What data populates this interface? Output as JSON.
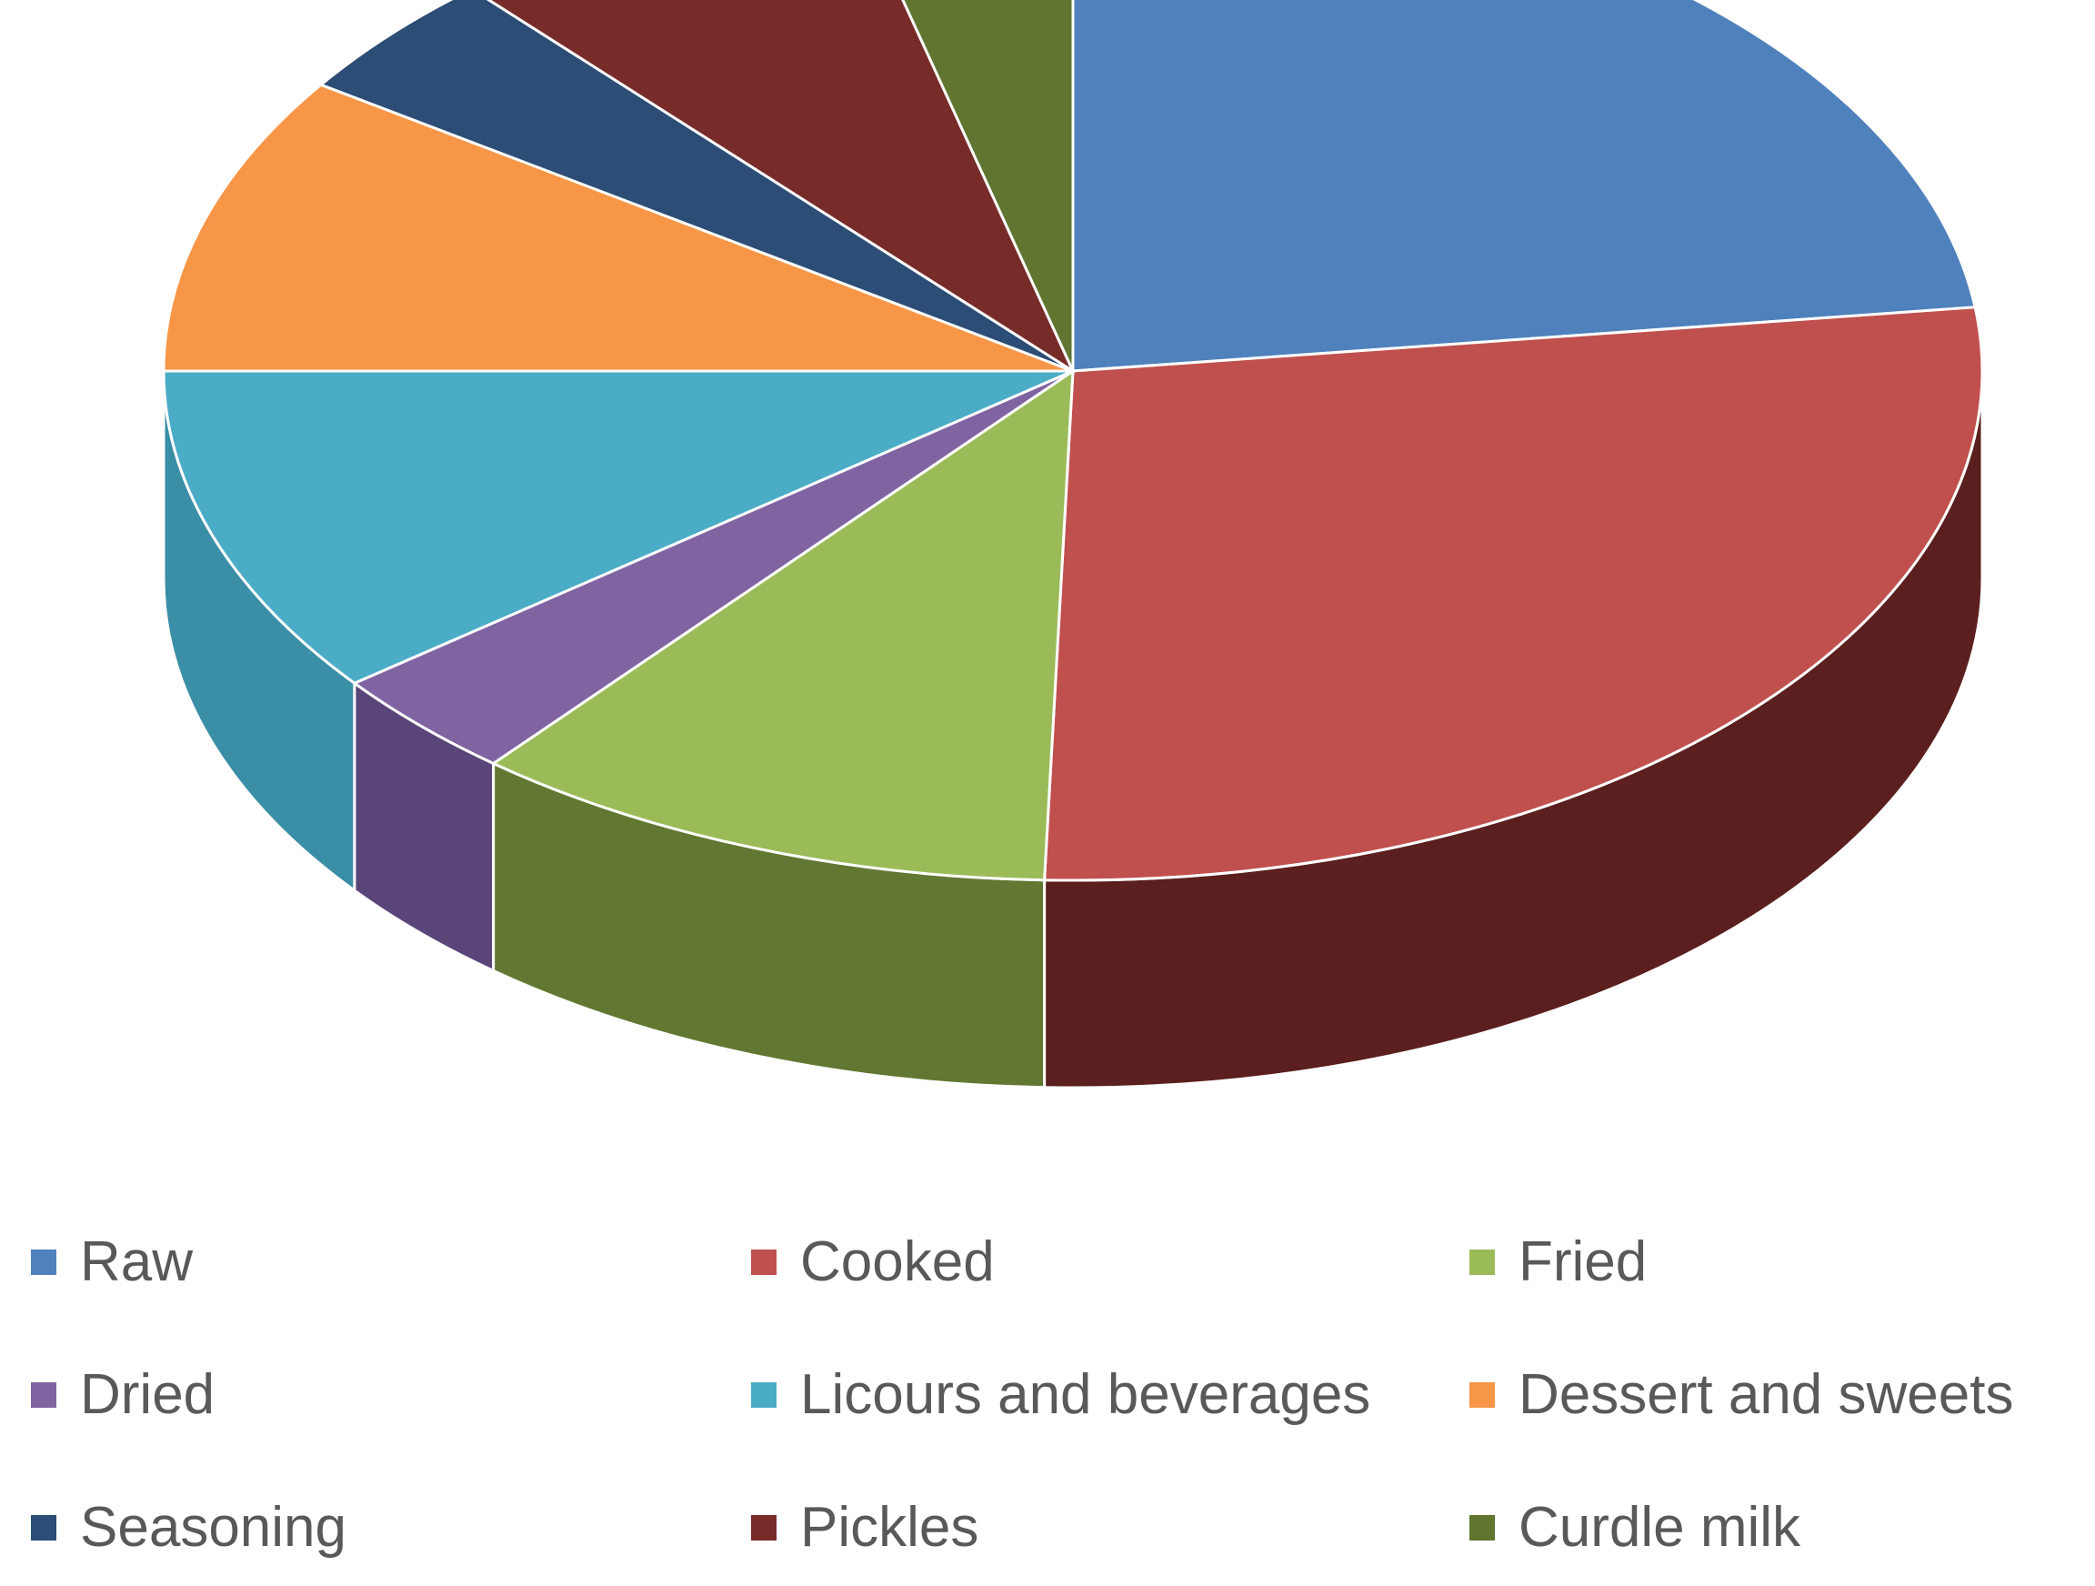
{
  "chart_data": {
    "type": "pie",
    "title": "",
    "style": "3d",
    "legend_position": "bottom",
    "categories": [
      "Raw",
      "Cooked",
      "Fried",
      "Dried",
      "Licours and beverages",
      "Dessert and sweets",
      "Seasoning",
      "Pickles",
      "Curdle milk"
    ],
    "values": [
      23.0,
      27.5,
      10.5,
      3.5,
      10.5,
      9.5,
      4.0,
      7.5,
      4.0
    ],
    "colors": [
      "#4F81BD",
      "#C0504D",
      "#9BBB59",
      "#8064A2",
      "#4BACC6",
      "#F79646",
      "#2C4D75",
      "#772C2A",
      "#5F7530"
    ],
    "side_colors": [
      "#3B6495",
      "#5A1F1E",
      "#627832",
      "#5A4578",
      "#3A8EA6",
      "#C0702F",
      "#1F3654",
      "#511E1D",
      "#435422"
    ]
  }
}
